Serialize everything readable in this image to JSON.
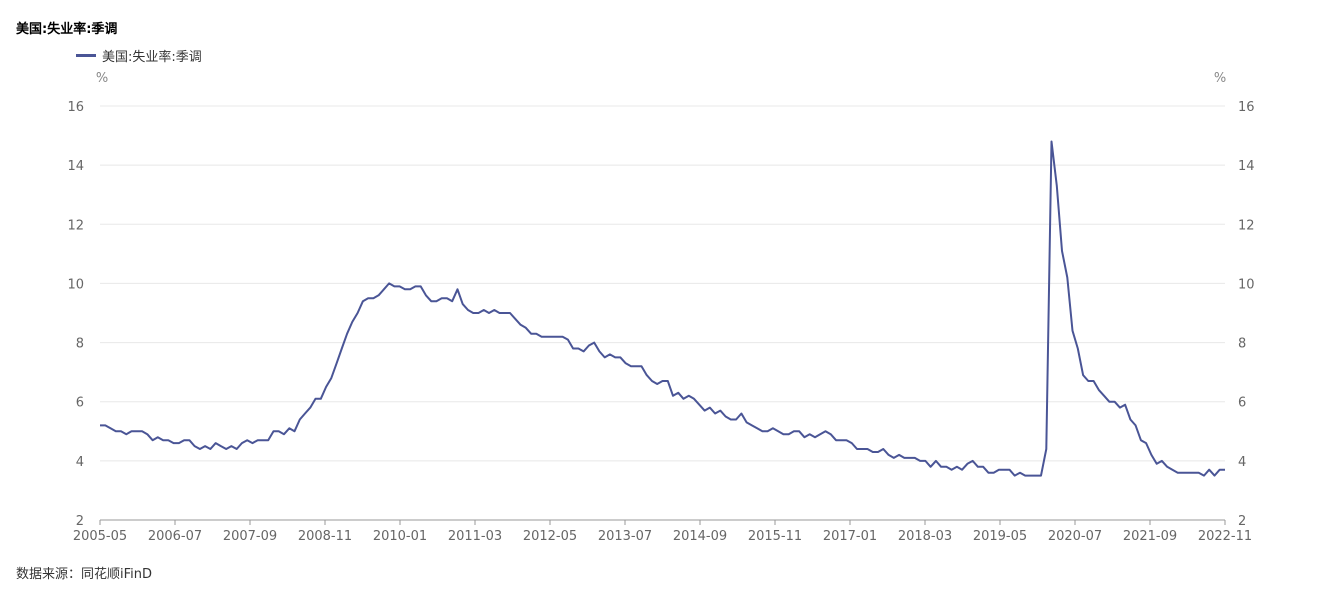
{
  "title": "美国:失业率:季调",
  "source": "数据来源：同花顺iFinD",
  "colors": {
    "series": "#4a5596",
    "grid": "#e8e8e8",
    "axis": "#999999"
  },
  "chart_data": {
    "type": "line",
    "title": "美国:失业率:季调",
    "left_unit": "%",
    "right_unit": "%",
    "ylim": [
      2,
      16
    ],
    "y_ticks": [
      "2",
      "4",
      "6",
      "8",
      "10",
      "12",
      "14",
      "16"
    ],
    "x_tick_labels": [
      "2005-05",
      "2006-07",
      "2007-09",
      "2008-11",
      "2010-01",
      "2011-03",
      "2012-05",
      "2013-07",
      "2014-09",
      "2015-11",
      "2017-01",
      "2018-03",
      "2019-05",
      "2020-07",
      "2021-09",
      "2022-11"
    ],
    "x_start": "2005-05",
    "x_end": "2022-11",
    "grid": "horizontal",
    "legend_position": "top-left",
    "series": [
      {
        "name": "美国:失业率:季调",
        "values": [
          5.2,
          5.2,
          5.1,
          5.0,
          5.0,
          4.9,
          5.0,
          5.0,
          5.0,
          4.9,
          4.7,
          4.8,
          4.7,
          4.7,
          4.6,
          4.6,
          4.7,
          4.7,
          4.5,
          4.4,
          4.5,
          4.4,
          4.6,
          4.5,
          4.4,
          4.5,
          4.4,
          4.6,
          4.7,
          4.6,
          4.7,
          4.7,
          4.7,
          5.0,
          5.0,
          4.9,
          5.1,
          5.0,
          5.4,
          5.6,
          5.8,
          6.1,
          6.1,
          6.5,
          6.8,
          7.3,
          7.8,
          8.3,
          8.7,
          9.0,
          9.4,
          9.5,
          9.5,
          9.6,
          9.8,
          10.0,
          9.9,
          9.9,
          9.8,
          9.8,
          9.9,
          9.9,
          9.6,
          9.4,
          9.4,
          9.5,
          9.5,
          9.4,
          9.8,
          9.3,
          9.1,
          9.0,
          9.0,
          9.1,
          9.0,
          9.1,
          9.0,
          9.0,
          9.0,
          8.8,
          8.6,
          8.5,
          8.3,
          8.3,
          8.2,
          8.2,
          8.2,
          8.2,
          8.2,
          8.1,
          7.8,
          7.8,
          7.7,
          7.9,
          8.0,
          7.7,
          7.5,
          7.6,
          7.5,
          7.5,
          7.3,
          7.2,
          7.2,
          7.2,
          6.9,
          6.7,
          6.6,
          6.7,
          6.7,
          6.2,
          6.3,
          6.1,
          6.2,
          6.1,
          5.9,
          5.7,
          5.8,
          5.6,
          5.7,
          5.5,
          5.4,
          5.4,
          5.6,
          5.3,
          5.2,
          5.1,
          5.0,
          5.0,
          5.1,
          5.0,
          4.9,
          4.9,
          5.0,
          5.0,
          4.8,
          4.9,
          4.8,
          4.9,
          5.0,
          4.9,
          4.7,
          4.7,
          4.7,
          4.6,
          4.4,
          4.4,
          4.4,
          4.3,
          4.3,
          4.4,
          4.2,
          4.1,
          4.2,
          4.1,
          4.1,
          4.1,
          4.0,
          4.0,
          3.8,
          4.0,
          3.8,
          3.8,
          3.7,
          3.8,
          3.7,
          3.9,
          4.0,
          3.8,
          3.8,
          3.6,
          3.6,
          3.7,
          3.7,
          3.7,
          3.5,
          3.6,
          3.5,
          3.5,
          3.5,
          3.5,
          4.4,
          14.8,
          13.3,
          11.1,
          10.2,
          8.4,
          7.8,
          6.9,
          6.7,
          6.7,
          6.4,
          6.2,
          6.0,
          6.0,
          5.8,
          5.9,
          5.4,
          5.2,
          4.7,
          4.6,
          4.2,
          3.9,
          4.0,
          3.8,
          3.7,
          3.6,
          3.6,
          3.6,
          3.6,
          3.6,
          3.5,
          3.7,
          3.5,
          3.7,
          3.7
        ]
      }
    ]
  }
}
